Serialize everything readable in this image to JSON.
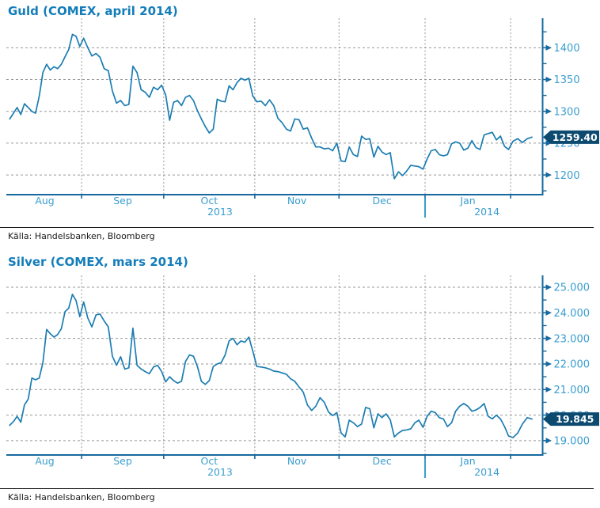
{
  "colors": {
    "title_blue": "#137dba",
    "axis_label_blue": "#3a9ed0",
    "line_blue": "#1c7db2",
    "axis_blue": "#16699f",
    "grid_gray": "#979797",
    "price_box_navy": "#0c4a70",
    "price_box_text": "#ffffff",
    "source_text": "#1a1a1a"
  },
  "source_note": {
    "label": "Källa: Handelsbanken, Bloomberg"
  },
  "chart_data": [
    {
      "type": "line",
      "id": "gold",
      "title": "Guld (COMEX, april 2014)",
      "legend_position": "none",
      "grid": true,
      "y_axis_side": "right",
      "ylim": [
        1169,
        1431.5
      ],
      "y_major_ticks": [
        {
          "v": 1400,
          "label": "1400"
        },
        {
          "v": 1350,
          "label": "1350"
        },
        {
          "v": 1300,
          "label": "1300"
        },
        {
          "v": 1250,
          "label": "1250"
        },
        {
          "v": 1200,
          "label": "1200"
        }
      ],
      "y_minor_ticks": [
        1425,
        1375,
        1325,
        1275,
        1225,
        1175
      ],
      "x_month_labels": [
        "Aug",
        "Sep",
        "Oct",
        "Nov",
        "Dec",
        "Jan"
      ],
      "x_month_boundaries": [
        0,
        0.14,
        0.296,
        0.469,
        0.629,
        0.7925,
        0.955,
        1.0
      ],
      "year_labels": [
        {
          "text": "2013",
          "fx": 0.403
        },
        {
          "text": "2014",
          "fx": 0.91
        }
      ],
      "year_separator_fx": 0.7925,
      "last_price_label": "1259.40",
      "last_price_value": 1259.4,
      "points_per_month": [
        20,
        20,
        23,
        20,
        21,
        21,
        5
      ],
      "values": [
        1288,
        1297,
        1306,
        1295,
        1312,
        1306,
        1300,
        1297,
        1324,
        1361,
        1374,
        1365,
        1370,
        1367,
        1374,
        1386,
        1397,
        1421,
        1418,
        1402,
        1415,
        1400,
        1387,
        1391,
        1385,
        1367,
        1364,
        1332,
        1313,
        1317,
        1309,
        1311,
        1371,
        1361,
        1334,
        1330,
        1322,
        1338,
        1334,
        1341,
        1326,
        1286,
        1314,
        1317,
        1309,
        1322,
        1325,
        1317,
        1301,
        1288,
        1276,
        1266,
        1272,
        1319,
        1316,
        1315,
        1340,
        1334,
        1345,
        1352,
        1349,
        1352,
        1324,
        1315,
        1316,
        1309,
        1318,
        1309,
        1289,
        1282,
        1272,
        1269,
        1288,
        1287,
        1272,
        1274,
        1258,
        1244,
        1244,
        1241,
        1242,
        1238,
        1250,
        1222,
        1221,
        1244,
        1232,
        1229,
        1261,
        1256,
        1257,
        1228,
        1245,
        1236,
        1232,
        1235,
        1194,
        1205,
        1199,
        1206,
        1215,
        1214,
        1213,
        1209,
        1225,
        1238,
        1240,
        1232,
        1230,
        1232,
        1249,
        1252,
        1250,
        1239,
        1242,
        1254,
        1243,
        1240,
        1263,
        1265,
        1267,
        1255,
        1261,
        1245,
        1240,
        1253,
        1257,
        1251,
        1257,
        1259.4
      ]
    },
    {
      "type": "line",
      "id": "silver",
      "title": "Silver (COMEX, mars 2014)",
      "legend_position": "none",
      "grid": true,
      "y_axis_side": "right",
      "ylim": [
        18.44,
        25.34
      ],
      "y_major_ticks": [
        {
          "v": 25,
          "label": "25.000"
        },
        {
          "v": 24,
          "label": "24.000"
        },
        {
          "v": 23,
          "label": "23.000"
        },
        {
          "v": 22,
          "label": "22.000"
        },
        {
          "v": 21,
          "label": "21.000"
        },
        {
          "v": 20,
          "label": "20.000"
        },
        {
          "v": 19,
          "label": "19.000"
        }
      ],
      "y_minor_ticks": [
        24.5,
        23.5,
        22.5,
        21.5,
        20.5,
        19.5,
        18.5
      ],
      "x_month_labels": [
        "Aug",
        "Sep",
        "Oct",
        "Nov",
        "Dec",
        "Jan"
      ],
      "x_month_boundaries": [
        0,
        0.14,
        0.296,
        0.469,
        0.629,
        0.7925,
        0.955,
        1.0
      ],
      "year_labels": [
        {
          "text": "2013",
          "fx": 0.403
        },
        {
          "text": "2014",
          "fx": 0.91
        }
      ],
      "year_separator_fx": 0.7925,
      "last_price_label": "19.845",
      "last_price_value": 19.845,
      "points_per_month": [
        20,
        20,
        23,
        20,
        21,
        21,
        5
      ],
      "values": [
        19.6,
        19.75,
        19.95,
        19.72,
        20.4,
        20.62,
        21.45,
        21.38,
        21.45,
        22.05,
        23.35,
        23.18,
        23.05,
        23.15,
        23.38,
        24.05,
        24.18,
        24.72,
        24.48,
        23.85,
        24.42,
        23.8,
        23.45,
        23.92,
        23.95,
        23.68,
        23.45,
        22.3,
        21.95,
        22.28,
        21.8,
        21.85,
        23.4,
        21.95,
        21.8,
        21.7,
        21.62,
        21.88,
        21.95,
        21.7,
        21.3,
        21.5,
        21.35,
        21.25,
        21.32,
        22.1,
        22.35,
        22.3,
        21.9,
        21.32,
        21.2,
        21.35,
        21.9,
        22.0,
        22.05,
        22.35,
        22.9,
        23.0,
        22.75,
        22.9,
        22.85,
        23.05,
        22.5,
        21.9,
        21.88,
        21.85,
        21.8,
        21.72,
        21.7,
        21.65,
        21.6,
        21.42,
        21.32,
        21.1,
        20.9,
        20.4,
        20.18,
        20.35,
        20.68,
        20.5,
        20.12,
        19.98,
        20.1,
        19.3,
        19.15,
        19.8,
        19.7,
        19.55,
        19.65,
        20.3,
        20.25,
        19.5,
        20.05,
        19.9,
        20.05,
        19.82,
        19.15,
        19.3,
        19.4,
        19.42,
        19.46,
        19.7,
        19.8,
        19.52,
        19.95,
        20.15,
        20.1,
        19.9,
        19.85,
        19.55,
        19.7,
        20.15,
        20.35,
        20.45,
        20.35,
        20.15,
        20.2,
        20.3,
        20.45,
        19.95,
        19.85,
        20.0,
        19.85,
        19.55,
        19.18,
        19.12,
        19.3,
        19.65,
        19.9,
        19.845
      ]
    }
  ]
}
